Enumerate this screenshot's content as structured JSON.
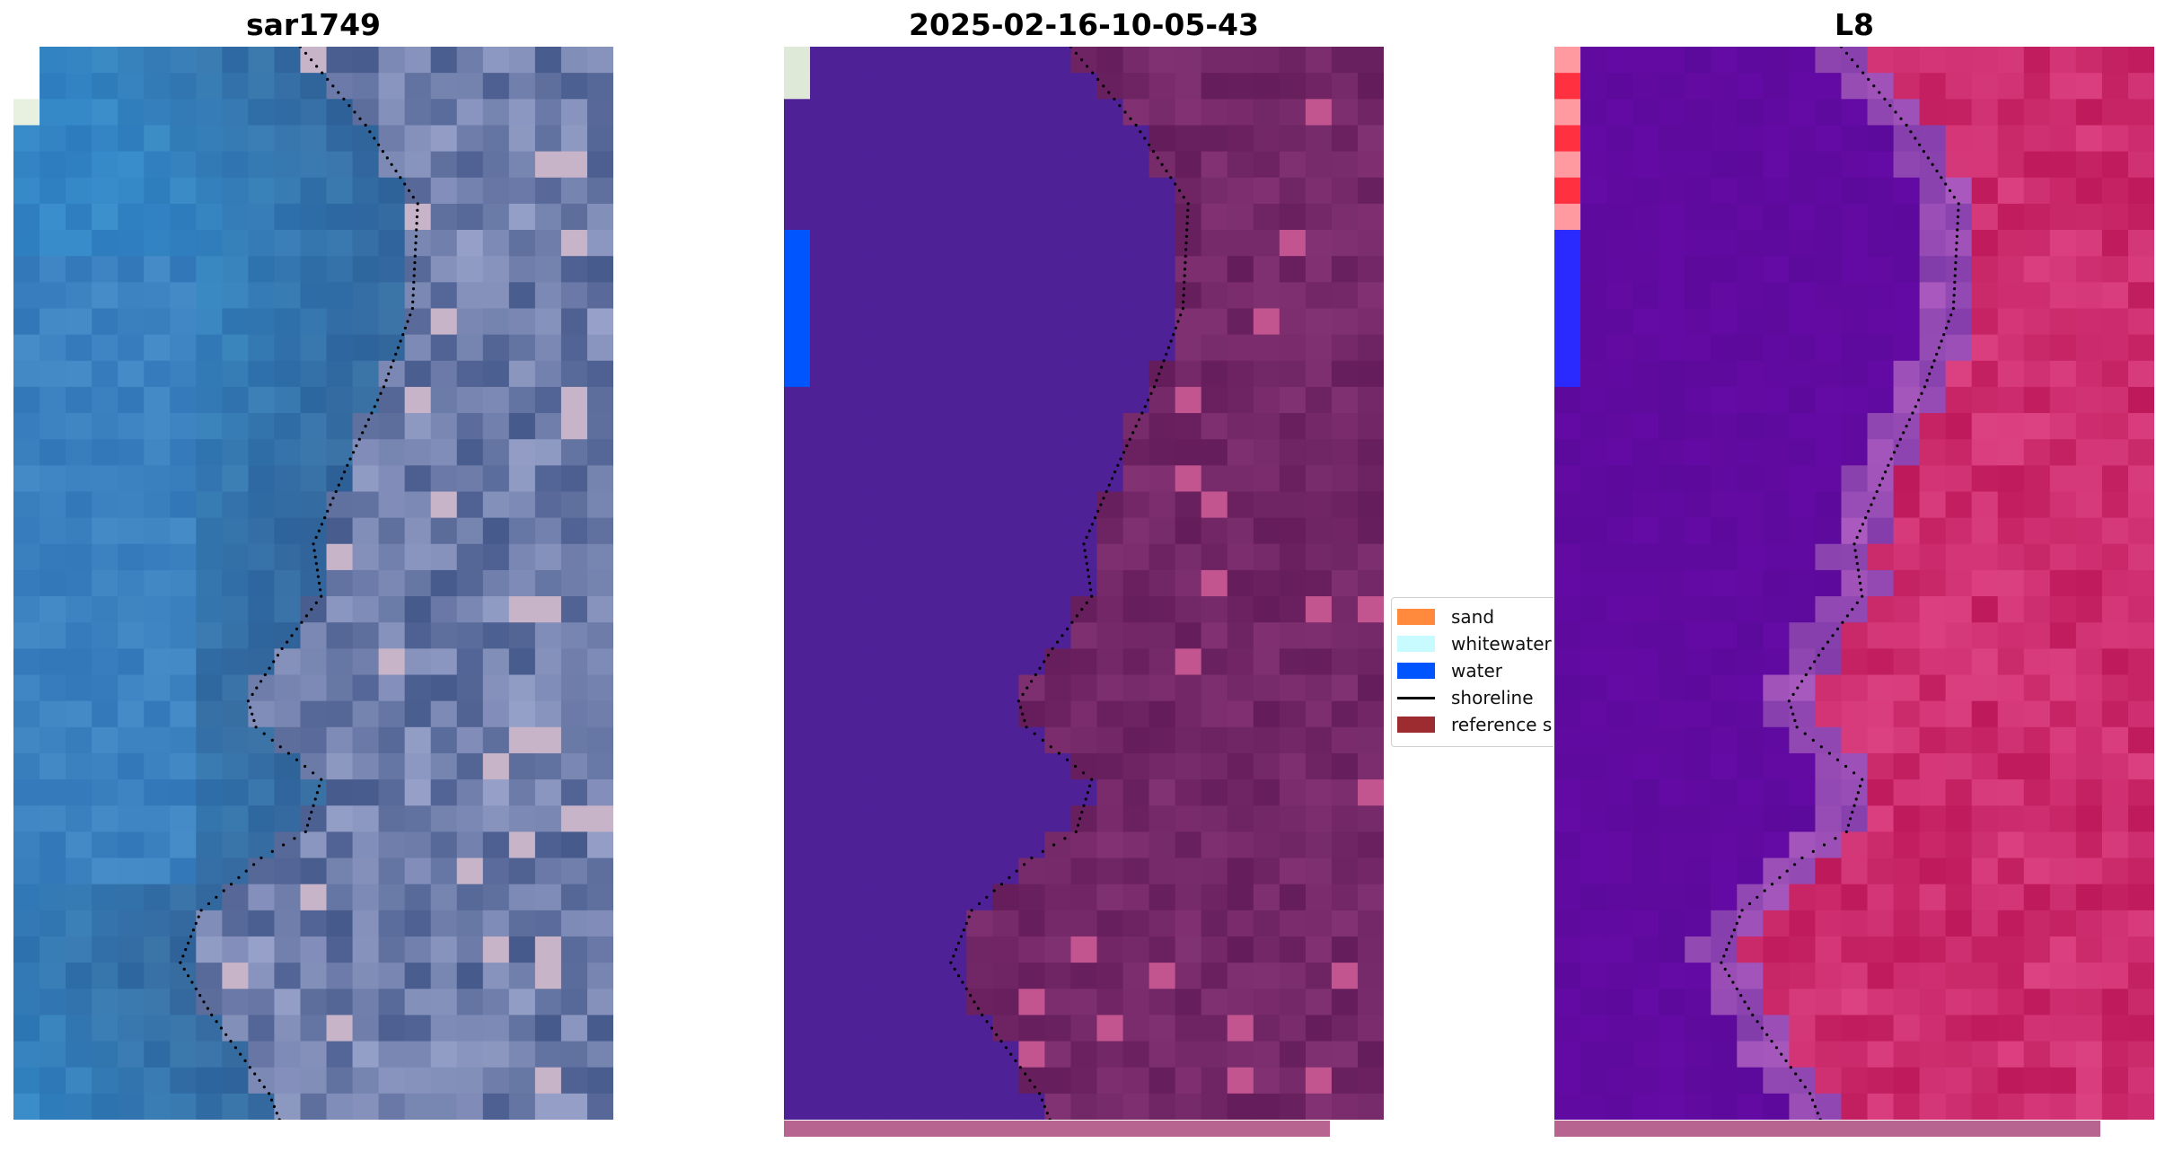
{
  "panels": [
    {
      "title": "sar1749",
      "style": "rgb"
    },
    {
      "title": "2025-02-16-10-05-43",
      "style": "classified"
    },
    {
      "title": "L8",
      "style": "falsecolor"
    }
  ],
  "legend": {
    "items": [
      {
        "label": "sand",
        "color": "#ff8a3d",
        "kind": "patch"
      },
      {
        "label": "whitewater",
        "color": "#c8fbff",
        "kind": "patch"
      },
      {
        "label": "water",
        "color": "#0055ff",
        "kind": "patch"
      },
      {
        "label": "shoreline",
        "color": "#000000",
        "kind": "line"
      },
      {
        "label": "reference s",
        "color": "#9c2c30",
        "kind": "patch"
      }
    ]
  },
  "colors": {
    "classified_water": "#4f2197",
    "classified_land": "#6e1f5f",
    "strip": "#b86491",
    "shoreline": "#000000"
  }
}
